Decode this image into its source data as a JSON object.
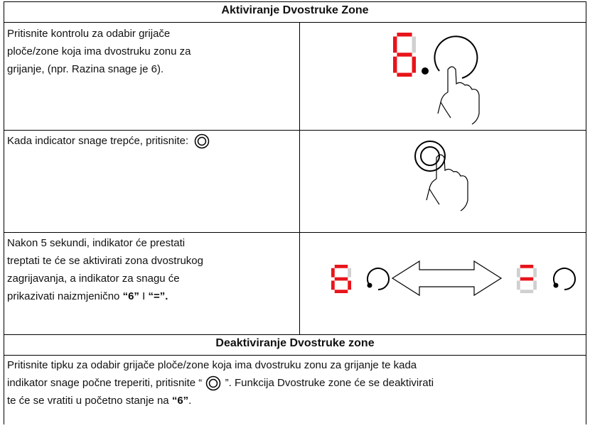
{
  "header": {
    "title": "Aktiviranje Dvostruke Zone"
  },
  "rows": [
    {
      "lines": [
        "Pritisnite kontrolu za odabir grijače",
        "ploče/zone koja ima dvostruku zonu za",
        "grijanje, (npr. Razina snage je 6)."
      ]
    },
    {
      "lines": [
        "Kada indicator snage trepće, pritisnite:"
      ]
    },
    {
      "lines": [
        "Nakon 5 sekundi, indikator će prestati",
        "treptati te će se aktivirati zona dvostrukog",
        "zagrijavanja, a indikator za snagu će"
      ],
      "last_line": [
        "prikazivati naizmjenično ",
        "“6”",
        " I ",
        "“=”."
      ]
    }
  ],
  "section2": {
    "title": "Deaktiviranje Dvostruke zone",
    "line1": "Pritisnite tipku za odabir grijače ploče/zone koja ima dvostruku zonu za grijanje te kada",
    "line2": [
      "indikator snage počne treperiti, pritisnite “ ",
      " ”. Funkcija Dvostruke zone će se deaktivirati"
    ],
    "line3": [
      "te će se vratiti u početno stanje na ",
      "“6”",
      "."
    ]
  }
}
